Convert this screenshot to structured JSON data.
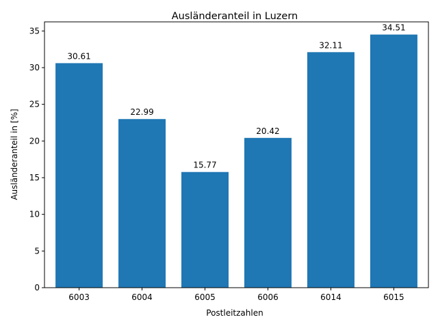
{
  "chart_data": {
    "type": "bar",
    "title": "Ausländeranteil in Luzern",
    "xlabel": "Postleitzahlen",
    "ylabel": "Ausländeranteil in [%]",
    "categories": [
      "6003",
      "6004",
      "6005",
      "6006",
      "6014",
      "6015"
    ],
    "values": [
      30.61,
      22.99,
      15.77,
      20.42,
      32.11,
      34.51
    ],
    "data_labels": [
      "30.61",
      "22.99",
      "15.77",
      "20.42",
      "32.11",
      "34.51"
    ],
    "yticks": [
      0,
      5,
      10,
      15,
      20,
      25,
      30,
      35
    ],
    "ylim": [
      0,
      36.24
    ],
    "grid": false,
    "bar_color": "#1f77b4"
  }
}
